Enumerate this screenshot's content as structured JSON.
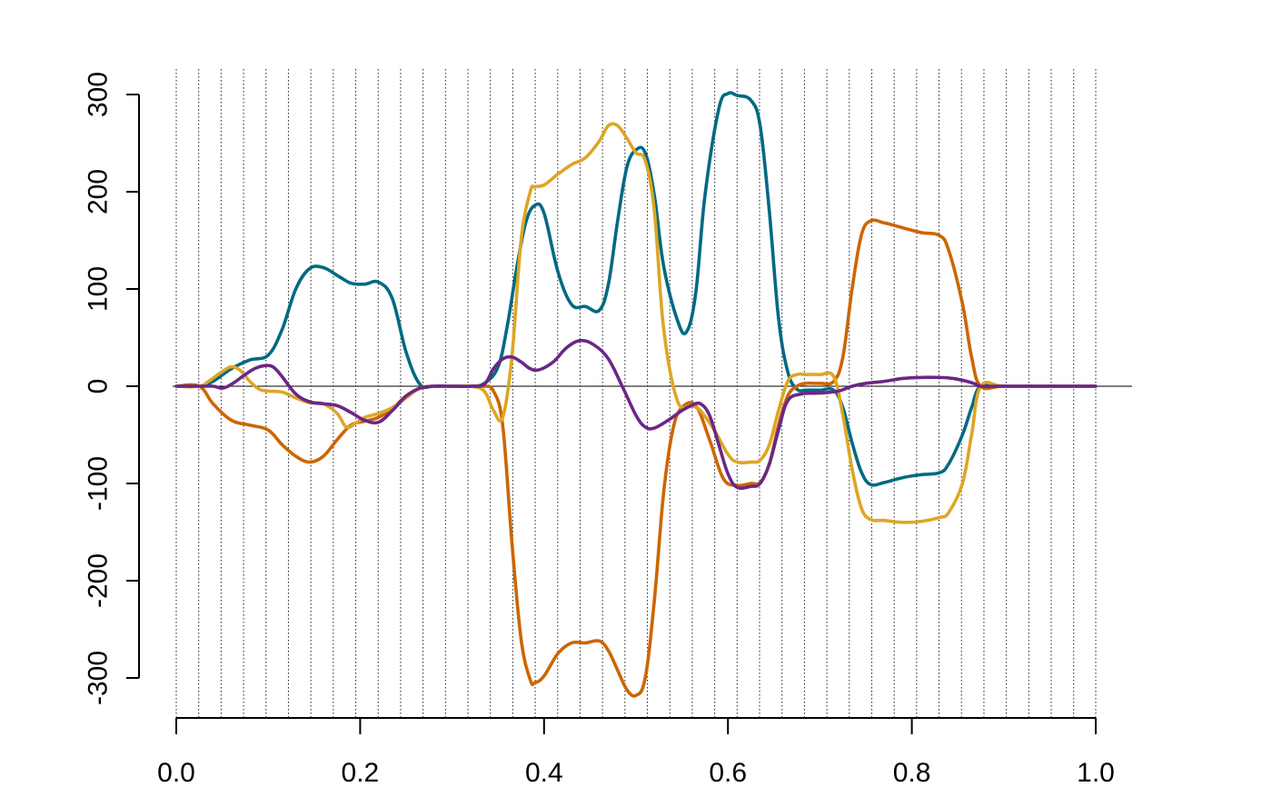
{
  "chart_data": {
    "type": "line",
    "title": "",
    "xlabel": "",
    "ylabel": "",
    "xlim": [
      0,
      1
    ],
    "ylim": [
      -340,
      325
    ],
    "x_ticks": [
      0.0,
      0.2,
      0.4,
      0.6,
      0.8,
      1.0
    ],
    "x_tick_labels": [
      "0.0",
      "0.2",
      "0.4",
      "0.6",
      "0.8",
      "1.0"
    ],
    "y_ticks": [
      -300,
      -200,
      -100,
      0,
      100,
      200,
      300
    ],
    "y_tick_labels": [
      "-300",
      "-200",
      "-100",
      "0",
      "100",
      "200",
      "300"
    ],
    "vertical_grid": {
      "style": "dotted",
      "start": 0.0,
      "end": 1.0,
      "step": 0.0244
    },
    "zero_line": true,
    "grid": false,
    "legend": "none",
    "series": [
      {
        "color": "#006983",
        "x": [
          0,
          0.025,
          0.04,
          0.06,
          0.08,
          0.1,
          0.115,
          0.13,
          0.145,
          0.16,
          0.175,
          0.19,
          0.205,
          0.22,
          0.235,
          0.25,
          0.265,
          0.28,
          0.3,
          0.32,
          0.335,
          0.35,
          0.36,
          0.37,
          0.38,
          0.39,
          0.4,
          0.415,
          0.43,
          0.445,
          0.46,
          0.47,
          0.48,
          0.49,
          0.5,
          0.51,
          0.52,
          0.53,
          0.545,
          0.555,
          0.565,
          0.575,
          0.59,
          0.6,
          0.61,
          0.625,
          0.635,
          0.645,
          0.655,
          0.665,
          0.675,
          0.685,
          0.7,
          0.715,
          0.725,
          0.735,
          0.745,
          0.755,
          0.77,
          0.79,
          0.81,
          0.83,
          0.84,
          0.855,
          0.865,
          0.875,
          0.9,
          0.95,
          1.0
        ],
        "y": [
          0,
          0,
          5,
          18,
          27,
          32,
          58,
          100,
          121,
          122,
          114,
          106,
          105,
          107,
          90,
          35,
          2,
          0,
          0,
          0,
          3,
          20,
          62,
          120,
          168,
          186,
          178,
          118,
          84,
          82,
          78,
          105,
          170,
          225,
          243,
          240,
          196,
          124,
          68,
          56,
          96,
          196,
          285,
          301,
          299,
          294,
          268,
          180,
          70,
          15,
          -3,
          -4,
          -4,
          -4,
          -22,
          -58,
          -88,
          -101,
          -99,
          -94,
          -91,
          -89,
          -80,
          -50,
          -22,
          0,
          0,
          0,
          0
        ]
      },
      {
        "color": "#CC6600",
        "x": [
          0,
          0.025,
          0.04,
          0.06,
          0.08,
          0.1,
          0.115,
          0.13,
          0.145,
          0.16,
          0.175,
          0.19,
          0.205,
          0.22,
          0.235,
          0.25,
          0.265,
          0.28,
          0.3,
          0.32,
          0.335,
          0.345,
          0.355,
          0.365,
          0.375,
          0.385,
          0.39,
          0.4,
          0.415,
          0.43,
          0.445,
          0.46,
          0.47,
          0.48,
          0.49,
          0.5,
          0.51,
          0.52,
          0.53,
          0.54,
          0.55,
          0.565,
          0.58,
          0.595,
          0.61,
          0.625,
          0.635,
          0.645,
          0.655,
          0.665,
          0.675,
          0.685,
          0.7,
          0.715,
          0.725,
          0.735,
          0.745,
          0.755,
          0.77,
          0.79,
          0.81,
          0.83,
          0.84,
          0.855,
          0.865,
          0.875,
          0.9,
          0.95,
          1.0
        ],
        "y": [
          0,
          0,
          -18,
          -35,
          -40,
          -45,
          -60,
          -72,
          -78,
          -72,
          -55,
          -40,
          -36,
          -32,
          -23,
          -10,
          -2,
          0,
          0,
          0,
          0,
          -5,
          -40,
          -160,
          -260,
          -302,
          -305,
          -298,
          -275,
          -264,
          -264,
          -262,
          -272,
          -292,
          -312,
          -318,
          -300,
          -220,
          -110,
          -45,
          -22,
          -20,
          -55,
          -95,
          -102,
          -100,
          -99,
          -80,
          -40,
          -10,
          0,
          3,
          3,
          5,
          30,
          100,
          155,
          170,
          168,
          163,
          158,
          155,
          140,
          85,
          30,
          0,
          0,
          0,
          0
        ]
      },
      {
        "color": "#DDA624",
        "x": [
          0,
          0.025,
          0.035,
          0.05,
          0.06,
          0.07,
          0.08,
          0.09,
          0.1,
          0.115,
          0.13,
          0.145,
          0.16,
          0.175,
          0.185,
          0.195,
          0.205,
          0.22,
          0.235,
          0.25,
          0.265,
          0.28,
          0.3,
          0.32,
          0.335,
          0.345,
          0.355,
          0.365,
          0.375,
          0.385,
          0.39,
          0.4,
          0.415,
          0.43,
          0.445,
          0.46,
          0.47,
          0.48,
          0.49,
          0.5,
          0.51,
          0.52,
          0.53,
          0.545,
          0.56,
          0.57,
          0.585,
          0.6,
          0.61,
          0.625,
          0.635,
          0.645,
          0.655,
          0.665,
          0.675,
          0.685,
          0.7,
          0.715,
          0.725,
          0.735,
          0.745,
          0.755,
          0.77,
          0.79,
          0.81,
          0.83,
          0.84,
          0.855,
          0.865,
          0.875,
          0.9,
          0.95,
          1.0
        ],
        "y": [
          0,
          0,
          5,
          15,
          20,
          16,
          5,
          -3,
          -5,
          -6,
          -12,
          -17,
          -18,
          -28,
          -42,
          -38,
          -32,
          -28,
          -22,
          -12,
          -2,
          0,
          0,
          0,
          -5,
          -25,
          -32,
          30,
          150,
          200,
          205,
          207,
          218,
          228,
          235,
          252,
          268,
          268,
          255,
          240,
          232,
          180,
          60,
          -15,
          -20,
          -25,
          -45,
          -70,
          -78,
          -78,
          -76,
          -60,
          -25,
          5,
          12,
          12,
          12,
          10,
          -30,
          -85,
          -125,
          -137,
          -138,
          -140,
          -139,
          -135,
          -130,
          -100,
          -50,
          0,
          0,
          0,
          0
        ]
      },
      {
        "color": "#6B2787",
        "x": [
          0,
          0.025,
          0.04,
          0.05,
          0.06,
          0.075,
          0.085,
          0.095,
          0.105,
          0.115,
          0.13,
          0.145,
          0.16,
          0.175,
          0.19,
          0.205,
          0.22,
          0.235,
          0.25,
          0.265,
          0.28,
          0.3,
          0.32,
          0.335,
          0.345,
          0.355,
          0.365,
          0.375,
          0.385,
          0.395,
          0.41,
          0.425,
          0.44,
          0.455,
          0.47,
          0.485,
          0.5,
          0.51,
          0.52,
          0.535,
          0.55,
          0.56,
          0.57,
          0.58,
          0.59,
          0.6,
          0.61,
          0.625,
          0.635,
          0.645,
          0.655,
          0.665,
          0.68,
          0.7,
          0.72,
          0.735,
          0.75,
          0.77,
          0.79,
          0.81,
          0.83,
          0.845,
          0.86,
          0.87,
          0.875,
          0.9,
          0.95,
          1.0
        ],
        "y": [
          0,
          0,
          0,
          -2,
          2,
          12,
          18,
          21,
          20,
          10,
          -8,
          -16,
          -18,
          -20,
          -27,
          -35,
          -37,
          -25,
          -10,
          -2,
          0,
          0,
          0,
          2,
          18,
          28,
          30,
          25,
          18,
          17,
          25,
          40,
          47,
          42,
          28,
          0,
          -30,
          -42,
          -43,
          -35,
          -25,
          -20,
          -18,
          -30,
          -60,
          -90,
          -104,
          -103,
          -100,
          -80,
          -45,
          -15,
          -8,
          -7,
          -5,
          0,
          3,
          5,
          8,
          9,
          9,
          8,
          5,
          2,
          0,
          0,
          0,
          0
        ]
      }
    ]
  }
}
